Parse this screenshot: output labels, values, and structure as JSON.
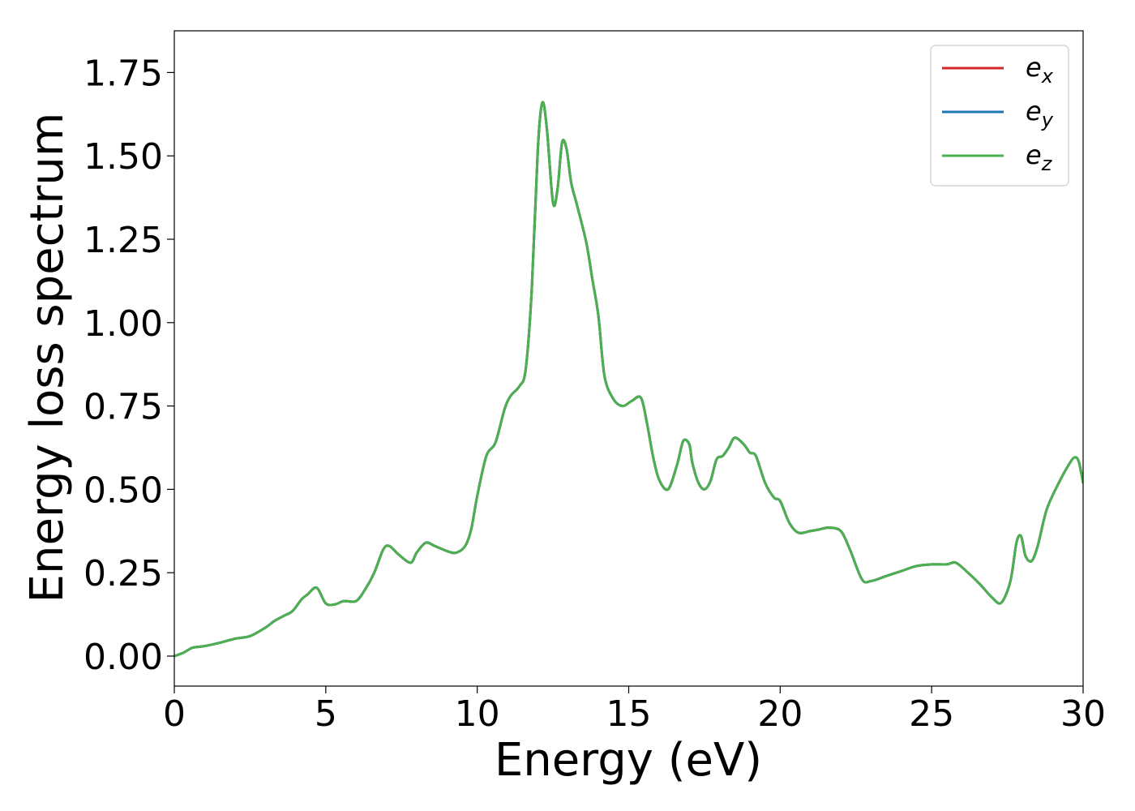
{
  "chart_data": {
    "type": "line",
    "xlabel": "Energy (eV)",
    "ylabel": "Energy loss spectrum",
    "xlim": [
      0,
      30
    ],
    "ylim": [
      -0.09,
      1.875
    ],
    "xticks": [
      0,
      5,
      10,
      15,
      20,
      25,
      30
    ],
    "xtick_labels": [
      "0",
      "5",
      "10",
      "15",
      "20",
      "25",
      "30"
    ],
    "yticks": [
      0.0,
      0.25,
      0.5,
      0.75,
      1.0,
      1.25,
      1.5,
      1.75
    ],
    "ytick_labels": [
      "0.00",
      "0.25",
      "0.50",
      "0.75",
      "1.00",
      "1.25",
      "1.50",
      "1.75"
    ],
    "grid": false,
    "legend_position": "top-right",
    "series": [
      {
        "name": "e",
        "subscript": "x",
        "color": "#d62728"
      },
      {
        "name": "e",
        "subscript": "y",
        "color": "#1f77b4"
      },
      {
        "name": "e",
        "subscript": "z",
        "color": "#4caf50"
      }
    ],
    "x": [
      0,
      0.3,
      0.6,
      1.0,
      1.5,
      2.0,
      2.5,
      3.0,
      3.3,
      3.6,
      3.9,
      4.2,
      4.4,
      4.7,
      5.0,
      5.3,
      5.6,
      6.0,
      6.3,
      6.6,
      6.9,
      7.1,
      7.4,
      7.8,
      8.0,
      8.3,
      8.6,
      9.0,
      9.3,
      9.6,
      9.8,
      10.0,
      10.3,
      10.6,
      10.9,
      11.1,
      11.4,
      11.6,
      11.8,
      12.0,
      12.15,
      12.3,
      12.5,
      12.65,
      12.8,
      12.95,
      13.1,
      13.3,
      13.6,
      13.8,
      14.0,
      14.2,
      14.5,
      14.8,
      15.1,
      15.4,
      15.6,
      15.8,
      16.0,
      16.3,
      16.6,
      16.8,
      17.0,
      17.1,
      17.3,
      17.5,
      17.7,
      17.9,
      18.1,
      18.3,
      18.5,
      18.8,
      19.0,
      19.2,
      19.5,
      19.8,
      20.0,
      20.3,
      20.6,
      21.0,
      21.3,
      21.6,
      22.0,
      22.3,
      22.7,
      23.0,
      23.5,
      24.0,
      24.5,
      25.0,
      25.5,
      25.8,
      26.2,
      26.6,
      27.0,
      27.3,
      27.6,
      27.8,
      27.95,
      28.1,
      28.3,
      28.5,
      28.8,
      29.2,
      29.5,
      29.7,
      29.85,
      30.0
    ],
    "y": [
      0.0,
      0.01,
      0.025,
      0.03,
      0.04,
      0.052,
      0.06,
      0.085,
      0.105,
      0.12,
      0.135,
      0.17,
      0.185,
      0.205,
      0.158,
      0.155,
      0.165,
      0.165,
      0.2,
      0.25,
      0.32,
      0.33,
      0.305,
      0.28,
      0.31,
      0.34,
      0.33,
      0.315,
      0.31,
      0.33,
      0.38,
      0.48,
      0.6,
      0.64,
      0.74,
      0.78,
      0.81,
      0.86,
      1.1,
      1.52,
      1.66,
      1.58,
      1.36,
      1.4,
      1.54,
      1.52,
      1.42,
      1.35,
      1.24,
      1.13,
      1.02,
      0.84,
      0.77,
      0.75,
      0.765,
      0.775,
      0.7,
      0.6,
      0.53,
      0.5,
      0.575,
      0.645,
      0.635,
      0.58,
      0.52,
      0.5,
      0.525,
      0.59,
      0.6,
      0.625,
      0.655,
      0.635,
      0.61,
      0.6,
      0.52,
      0.475,
      0.465,
      0.4,
      0.37,
      0.375,
      0.38,
      0.385,
      0.375,
      0.32,
      0.23,
      0.225,
      0.24,
      0.255,
      0.27,
      0.275,
      0.275,
      0.28,
      0.25,
      0.215,
      0.175,
      0.16,
      0.225,
      0.34,
      0.36,
      0.3,
      0.285,
      0.33,
      0.44,
      0.52,
      0.57,
      0.595,
      0.585,
      0.52
    ]
  }
}
